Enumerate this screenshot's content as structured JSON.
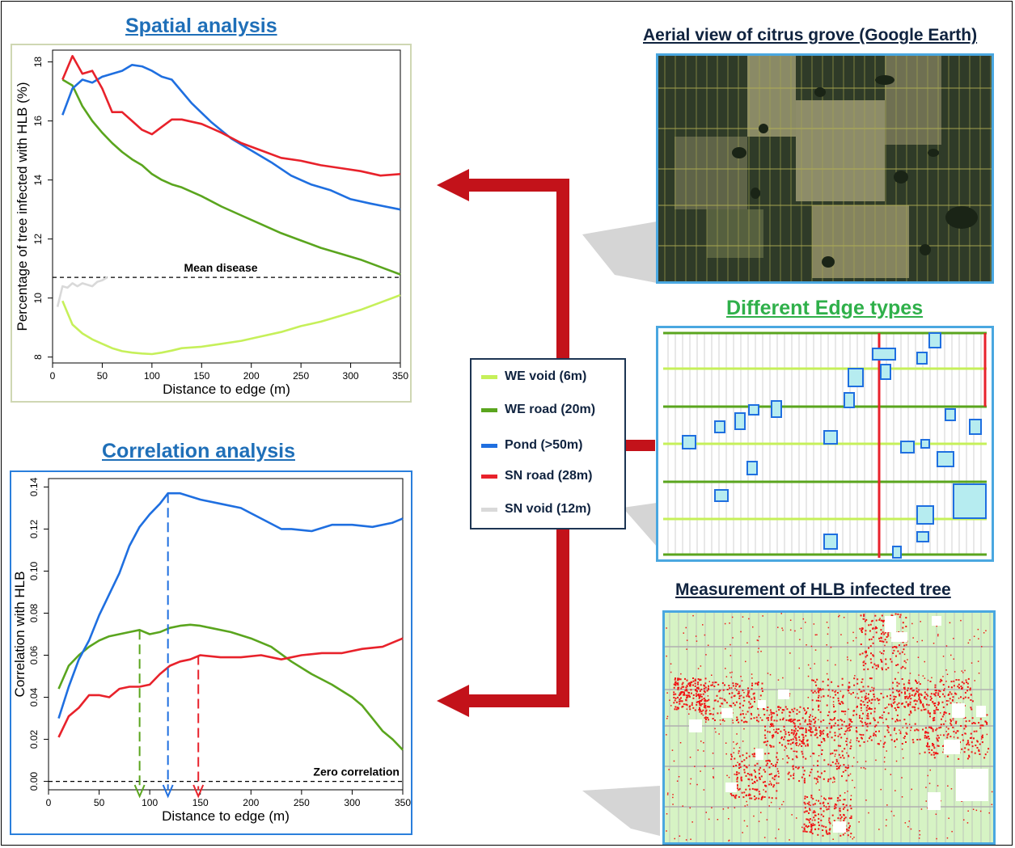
{
  "titles": {
    "spatial": "Spatial analysis",
    "correlation": "Correlation analysis",
    "aerial": "Aerial view of citrus grove (Google Earth)",
    "edges": "Different Edge types",
    "measurement": "Measurement of HLB infected tree"
  },
  "legend": [
    {
      "label": "WE void (6m)",
      "color": "#c6f05a"
    },
    {
      "label": "WE road (20m)",
      "color": "#5aa51e"
    },
    {
      "label": "Pond (>50m)",
      "color": "#1f6fe0"
    },
    {
      "label": "SN road (28m)",
      "color": "#e8222b"
    },
    {
      "label": "SN void (12m)",
      "color": "#d9d9d9"
    }
  ],
  "colors": {
    "we_void": "#c6f05a",
    "we_road": "#5aa51e",
    "pond": "#1f6fe0",
    "sn_road": "#e8222b",
    "sn_void": "#d9d9d9",
    "arrow": "#c3121a",
    "title_blue": "#1f6fb8",
    "title_green": "#2fb04a"
  },
  "chart_data": [
    {
      "type": "line",
      "xlabel": "Distance to edge (m)",
      "ylabel": "Percentage of tree infected with HLB (%)",
      "xlim": [
        0,
        350
      ],
      "ylim": [
        7.8,
        18.4
      ],
      "xticks": [
        0,
        50,
        100,
        150,
        200,
        250,
        300,
        350
      ],
      "yticks": [
        8,
        10,
        12,
        14,
        16,
        18
      ],
      "reference_line": {
        "y": 10.7,
        "label": "Mean disease"
      },
      "series": [
        {
          "name": "WE void (6m)",
          "x": [
            10,
            15,
            20,
            30,
            40,
            50,
            60,
            70,
            80,
            90,
            100,
            110,
            120,
            130,
            150,
            170,
            190,
            210,
            230,
            250,
            270,
            290,
            310,
            330,
            350
          ],
          "values": [
            9.9,
            9.5,
            9.1,
            8.8,
            8.6,
            8.45,
            8.3,
            8.2,
            8.15,
            8.12,
            8.1,
            8.15,
            8.22,
            8.3,
            8.35,
            8.45,
            8.55,
            8.7,
            8.85,
            9.05,
            9.2,
            9.4,
            9.6,
            9.85,
            10.1
          ]
        },
        {
          "name": "WE road (20m)",
          "x": [
            10,
            20,
            30,
            40,
            50,
            60,
            70,
            80,
            90,
            100,
            110,
            120,
            130,
            150,
            170,
            190,
            210,
            230,
            250,
            270,
            290,
            310,
            330,
            350
          ],
          "values": [
            17.4,
            17.2,
            16.5,
            16.0,
            15.6,
            15.25,
            14.95,
            14.7,
            14.5,
            14.2,
            14.0,
            13.85,
            13.75,
            13.45,
            13.1,
            12.8,
            12.5,
            12.2,
            11.95,
            11.7,
            11.5,
            11.3,
            11.05,
            10.8
          ]
        },
        {
          "name": "Pond (>50m)",
          "x": [
            10,
            20,
            30,
            40,
            50,
            60,
            70,
            80,
            90,
            100,
            110,
            120,
            130,
            140,
            160,
            180,
            200,
            220,
            240,
            260,
            280,
            300,
            320,
            350
          ],
          "values": [
            16.2,
            17.1,
            17.4,
            17.3,
            17.5,
            17.6,
            17.7,
            17.9,
            17.85,
            17.7,
            17.5,
            17.4,
            17.0,
            16.6,
            15.95,
            15.4,
            15.0,
            14.6,
            14.15,
            13.85,
            13.65,
            13.35,
            13.2,
            13.0
          ]
        },
        {
          "name": "SN road (28m)",
          "x": [
            10,
            20,
            30,
            40,
            50,
            60,
            70,
            80,
            90,
            100,
            110,
            120,
            130,
            150,
            170,
            190,
            210,
            230,
            250,
            270,
            290,
            310,
            330,
            350
          ],
          "values": [
            17.4,
            18.2,
            17.6,
            17.7,
            17.1,
            16.3,
            16.3,
            16.0,
            15.7,
            15.55,
            15.8,
            16.05,
            16.05,
            15.9,
            15.6,
            15.25,
            15.0,
            14.75,
            14.65,
            14.5,
            14.4,
            14.3,
            14.15,
            14.2
          ]
        },
        {
          "name": "SN void (12m)",
          "x": [
            5,
            10,
            15,
            20,
            25,
            30,
            35,
            40,
            45,
            50,
            55
          ],
          "values": [
            9.7,
            10.4,
            10.35,
            10.5,
            10.4,
            10.5,
            10.45,
            10.4,
            10.55,
            10.6,
            10.7
          ]
        }
      ]
    },
    {
      "type": "line",
      "xlabel": "Distance to edge (m)",
      "ylabel": "Correlation with HLB",
      "xlim": [
        0,
        350
      ],
      "ylim": [
        -0.004,
        0.144
      ],
      "xticks": [
        0,
        50,
        100,
        150,
        200,
        250,
        300,
        350
      ],
      "yticks": [
        0.0,
        0.02,
        0.04,
        0.06,
        0.08,
        0.1,
        0.12,
        0.14
      ],
      "reference_line": {
        "y": 0,
        "label": "Zero correlation"
      },
      "markers": [
        {
          "series": "WE road (20m)",
          "x": 90,
          "y": 0.072
        },
        {
          "series": "Pond (>50m)",
          "x": 118,
          "y": 0.137
        },
        {
          "series": "SN road (28m)",
          "x": 148,
          "y": 0.06
        }
      ],
      "series": [
        {
          "name": "WE road (20m)",
          "x": [
            10,
            20,
            30,
            40,
            50,
            60,
            70,
            80,
            90,
            100,
            110,
            120,
            130,
            140,
            150,
            160,
            180,
            200,
            220,
            240,
            260,
            280,
            300,
            310,
            320,
            330,
            340,
            350
          ],
          "values": [
            0.044,
            0.055,
            0.06,
            0.064,
            0.067,
            0.069,
            0.07,
            0.071,
            0.072,
            0.07,
            0.071,
            0.073,
            0.074,
            0.0745,
            0.074,
            0.073,
            0.071,
            0.068,
            0.064,
            0.057,
            0.051,
            0.046,
            0.04,
            0.036,
            0.03,
            0.024,
            0.02,
            0.015
          ]
        },
        {
          "name": "Pond (>50m)",
          "x": [
            10,
            20,
            30,
            40,
            50,
            60,
            70,
            80,
            90,
            100,
            110,
            118,
            130,
            150,
            170,
            190,
            210,
            230,
            240,
            260,
            280,
            300,
            320,
            340,
            350
          ],
          "values": [
            0.03,
            0.045,
            0.058,
            0.067,
            0.079,
            0.089,
            0.099,
            0.112,
            0.121,
            0.127,
            0.132,
            0.137,
            0.137,
            0.134,
            0.132,
            0.13,
            0.125,
            0.12,
            0.12,
            0.119,
            0.122,
            0.122,
            0.121,
            0.123,
            0.125
          ]
        },
        {
          "name": "SN road (28m)",
          "x": [
            10,
            20,
            30,
            40,
            50,
            60,
            70,
            80,
            90,
            100,
            110,
            120,
            130,
            140,
            150,
            170,
            190,
            210,
            230,
            250,
            270,
            290,
            310,
            330,
            350
          ],
          "values": [
            0.021,
            0.031,
            0.035,
            0.041,
            0.041,
            0.04,
            0.044,
            0.045,
            0.045,
            0.046,
            0.051,
            0.055,
            0.057,
            0.058,
            0.06,
            0.059,
            0.059,
            0.06,
            0.058,
            0.06,
            0.061,
            0.061,
            0.063,
            0.064,
            0.068
          ]
        }
      ]
    }
  ]
}
